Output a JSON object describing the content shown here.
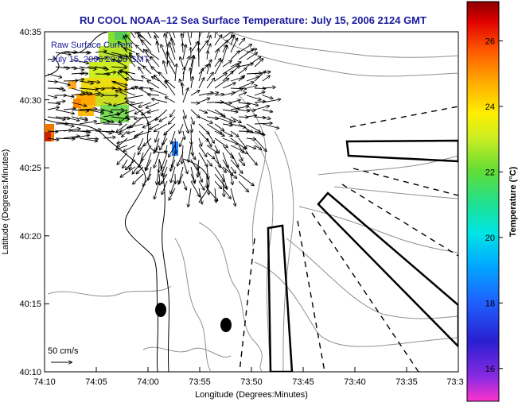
{
  "title": "RU COOL  NOAA–12  Sea Surface Temperature:  July 15, 2006 2124 GMT",
  "legend": {
    "line1": "Raw Surface Current",
    "line2": "July 15, 2006 20:00 GMT"
  },
  "scale_label": "50 cm/s",
  "x_axis": {
    "label": "Longitude (Degrees:Minutes)",
    "ticks": [
      "74:10",
      "74:05",
      "74:00",
      "73:55",
      "73:50",
      "73:45",
      "73:40",
      "73:35",
      "73:3"
    ]
  },
  "y_axis": {
    "label": "Latitude (Degrees:Minutes)",
    "ticks": [
      "40:35",
      "40:30",
      "40:25",
      "40:20",
      "40:15",
      "40:10"
    ]
  },
  "colorbar": {
    "label": "Temperature (°C)",
    "ticks": [
      "26",
      "24",
      "22",
      "20",
      "18",
      "16"
    ],
    "min": 15,
    "max": 27.2
  },
  "colors": {
    "title": "#1a1a9c",
    "land_outline": "#000000",
    "bathymetry": "#909090"
  }
}
